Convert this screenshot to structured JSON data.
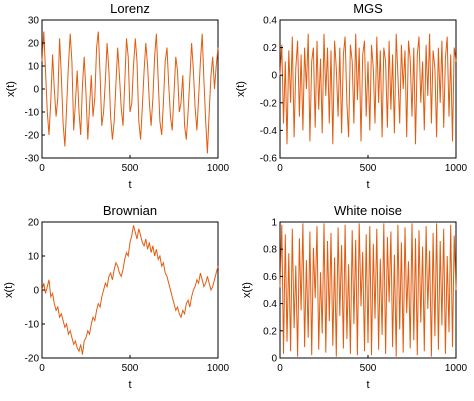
{
  "color": "#e25c10",
  "chart_data": [
    {
      "type": "line",
      "title": "Lorenz",
      "xlabel": "t",
      "ylabel": "x(t)",
      "xlim": [
        0,
        1000
      ],
      "ylim": [
        -30,
        30
      ],
      "xticks": [
        0,
        500,
        1000
      ],
      "yticks": [
        -30,
        -20,
        -10,
        0,
        10,
        20,
        30
      ],
      "ytick_labels": [
        "-30",
        "-20",
        "-10",
        "0",
        "10",
        "20",
        "30"
      ],
      "grid": false,
      "x": [
        0,
        10,
        20,
        30,
        40,
        50,
        60,
        70,
        80,
        90,
        100,
        110,
        120,
        130,
        140,
        150,
        160,
        170,
        180,
        190,
        200,
        210,
        220,
        230,
        240,
        250,
        260,
        270,
        280,
        290,
        300,
        310,
        320,
        330,
        340,
        350,
        360,
        370,
        380,
        390,
        400,
        410,
        420,
        430,
        440,
        450,
        460,
        470,
        480,
        490,
        500,
        510,
        520,
        530,
        540,
        550,
        560,
        570,
        580,
        590,
        600,
        610,
        620,
        630,
        640,
        650,
        660,
        670,
        680,
        690,
        700,
        710,
        720,
        730,
        740,
        750,
        760,
        770,
        780,
        790,
        800,
        810,
        820,
        830,
        840,
        850,
        860,
        870,
        880,
        890,
        900,
        910,
        920,
        930,
        940,
        950,
        960,
        970,
        980,
        990,
        1000
      ],
      "y": [
        12,
        25,
        8,
        -10,
        -20,
        -5,
        15,
        0,
        -12,
        -4,
        22,
        5,
        -15,
        -25,
        -8,
        10,
        24,
        12,
        -18,
        -6,
        8,
        -10,
        -20,
        2,
        14,
        -2,
        -22,
        -8,
        6,
        -12,
        -4,
        18,
        25,
        6,
        -16,
        -10,
        4,
        20,
        8,
        -12,
        -22,
        -14,
        2,
        18,
        6,
        -8,
        -16,
        2,
        22,
        14,
        -10,
        -6,
        10,
        22,
        12,
        -14,
        -22,
        -8,
        8,
        20,
        10,
        -6,
        -16,
        -4,
        14,
        24,
        4,
        -14,
        -20,
        -6,
        12,
        18,
        2,
        -12,
        -18,
        -2,
        14,
        8,
        -10,
        -6,
        6,
        -16,
        -22,
        -10,
        4,
        20,
        8,
        -8,
        -18,
        -4,
        12,
        24,
        4,
        -14,
        -28,
        -10,
        6,
        14,
        0,
        10,
        18
      ]
    },
    {
      "type": "line",
      "title": "MGS",
      "xlabel": "t",
      "ylabel": "x(t)",
      "xlim": [
        0,
        1000
      ],
      "ylim": [
        -0.6,
        0.4
      ],
      "xticks": [
        0,
        500,
        1000
      ],
      "yticks": [
        -0.6,
        -0.4,
        -0.2,
        0,
        0.2,
        0.4
      ],
      "ytick_labels": [
        "-0.6",
        "-0.4",
        "-0.2",
        "0",
        "0.2",
        "0.4"
      ],
      "grid": false,
      "x": [
        0,
        10,
        20,
        30,
        40,
        50,
        60,
        70,
        80,
        90,
        100,
        110,
        120,
        130,
        140,
        150,
        160,
        170,
        180,
        190,
        200,
        210,
        220,
        230,
        240,
        250,
        260,
        270,
        280,
        290,
        300,
        310,
        320,
        330,
        340,
        350,
        360,
        370,
        380,
        390,
        400,
        410,
        420,
        430,
        440,
        450,
        460,
        470,
        480,
        490,
        500,
        510,
        520,
        530,
        540,
        550,
        560,
        570,
        580,
        590,
        600,
        610,
        620,
        630,
        640,
        650,
        660,
        670,
        680,
        690,
        700,
        710,
        720,
        730,
        740,
        750,
        760,
        770,
        780,
        790,
        800,
        810,
        820,
        830,
        840,
        850,
        860,
        870,
        880,
        890,
        900,
        910,
        920,
        930,
        940,
        950,
        960,
        970,
        980,
        990,
        1000
      ],
      "y": [
        0.0,
        0.22,
        -0.35,
        0.1,
        -0.5,
        0.18,
        -0.2,
        0.28,
        -0.45,
        0.05,
        0.25,
        -0.3,
        0.15,
        -0.4,
        0.2,
        -0.1,
        0.3,
        -0.48,
        0.1,
        0.2,
        -0.38,
        0.25,
        -0.25,
        0.12,
        -0.42,
        0.3,
        -0.15,
        0.2,
        -0.35,
        0.18,
        -0.5,
        0.25,
        0.05,
        -0.3,
        0.2,
        -0.42,
        0.15,
        0.28,
        -0.2,
        -0.45,
        0.22,
        0.1,
        -0.35,
        0.3,
        -0.18,
        0.2,
        -0.48,
        0.15,
        0.25,
        -0.3,
        0.1,
        -0.4,
        0.22,
        0.05,
        -0.35,
        0.28,
        -0.2,
        0.18,
        -0.45,
        0.2,
        0.1,
        -0.38,
        0.25,
        -0.25,
        0.15,
        -0.42,
        0.3,
        0.0,
        -0.35,
        0.22,
        -0.1,
        0.18,
        -0.45,
        0.25,
        0.12,
        -0.3,
        0.2,
        -0.5,
        0.15,
        0.28,
        -0.2,
        0.1,
        -0.4,
        0.22,
        -0.15,
        0.3,
        -0.35,
        0.18,
        0.05,
        -0.45,
        0.2,
        -0.2,
        0.25,
        -0.38,
        0.12,
        0.28,
        -0.3,
        0.15,
        -0.48,
        0.2,
        0.1
      ]
    },
    {
      "type": "line",
      "title": "Brownian",
      "xlabel": "t",
      "ylabel": "x(t)",
      "xlim": [
        0,
        1000
      ],
      "ylim": [
        -20,
        20
      ],
      "xticks": [
        0,
        500,
        1000
      ],
      "yticks": [
        -20,
        -10,
        0,
        10,
        20
      ],
      "ytick_labels": [
        "-20",
        "-10",
        "0",
        "10",
        "20"
      ],
      "grid": false,
      "x": [
        0,
        10,
        20,
        30,
        40,
        50,
        60,
        70,
        80,
        90,
        100,
        110,
        120,
        130,
        140,
        150,
        160,
        170,
        180,
        190,
        200,
        210,
        220,
        230,
        240,
        250,
        260,
        270,
        280,
        290,
        300,
        310,
        320,
        330,
        340,
        350,
        360,
        370,
        380,
        390,
        400,
        410,
        420,
        430,
        440,
        450,
        460,
        470,
        480,
        490,
        500,
        510,
        520,
        530,
        540,
        550,
        560,
        570,
        580,
        590,
        600,
        610,
        620,
        630,
        640,
        650,
        660,
        670,
        680,
        690,
        700,
        710,
        720,
        730,
        740,
        750,
        760,
        770,
        780,
        790,
        800,
        810,
        820,
        830,
        840,
        850,
        860,
        870,
        880,
        890,
        900,
        910,
        920,
        930,
        940,
        950,
        960,
        970,
        980,
        990,
        1000
      ],
      "y": [
        0,
        2,
        -1,
        1,
        3,
        -2,
        -1,
        -4,
        -6,
        -5,
        -8,
        -7,
        -9,
        -11,
        -10,
        -13,
        -12,
        -14,
        -16,
        -15,
        -17,
        -18,
        -16,
        -19,
        -15,
        -14,
        -12,
        -13,
        -10,
        -8,
        -9,
        -6,
        -4,
        -5,
        -2,
        0,
        2,
        1,
        4,
        5,
        3,
        6,
        8,
        7,
        5,
        4,
        6,
        9,
        11,
        10,
        14,
        16,
        19,
        17,
        15,
        18,
        16,
        14,
        13,
        15,
        12,
        14,
        11,
        13,
        10,
        12,
        9,
        10,
        7,
        8,
        5,
        4,
        2,
        0,
        -2,
        -4,
        -6,
        -5,
        -7,
        -8,
        -6,
        -7,
        -4,
        -3,
        -5,
        -2,
        0,
        1,
        3,
        2,
        5,
        3,
        1,
        2,
        4,
        2,
        0,
        1,
        3,
        5,
        7
      ]
    },
    {
      "type": "line",
      "title": "White noise",
      "xlabel": "t",
      "ylabel": "x(t)",
      "xlim": [
        0,
        1000
      ],
      "ylim": [
        0,
        1
      ],
      "xticks": [
        0,
        500,
        1000
      ],
      "yticks": [
        0,
        0.2,
        0.4,
        0.6,
        0.8,
        1
      ],
      "ytick_labels": [
        "0",
        "0.2",
        "0.4",
        "0.6",
        "0.8",
        "1"
      ],
      "grid": false,
      "x": [
        0,
        10,
        20,
        30,
        40,
        50,
        60,
        70,
        80,
        90,
        100,
        110,
        120,
        130,
        140,
        150,
        160,
        170,
        180,
        190,
        200,
        210,
        220,
        230,
        240,
        250,
        260,
        270,
        280,
        290,
        300,
        310,
        320,
        330,
        340,
        350,
        360,
        370,
        380,
        390,
        400,
        410,
        420,
        430,
        440,
        450,
        460,
        470,
        480,
        490,
        500,
        510,
        520,
        530,
        540,
        550,
        560,
        570,
        580,
        590,
        600,
        610,
        620,
        630,
        640,
        650,
        660,
        670,
        680,
        690,
        700,
        710,
        720,
        730,
        740,
        750,
        760,
        770,
        780,
        790,
        800,
        810,
        820,
        830,
        840,
        850,
        860,
        870,
        880,
        890,
        900,
        910,
        920,
        930,
        940,
        950,
        960,
        970,
        980,
        990,
        1000
      ],
      "y": [
        0.52,
        0.98,
        0.03,
        0.91,
        0.12,
        0.77,
        0.05,
        0.95,
        0.22,
        0.68,
        0.01,
        0.88,
        0.35,
        0.99,
        0.08,
        0.72,
        0.15,
        0.93,
        0.02,
        0.81,
        0.44,
        0.97,
        0.06,
        0.63,
        0.18,
        0.99,
        0.04,
        0.86,
        0.27,
        0.92,
        0.09,
        0.74,
        0.01,
        0.96,
        0.31,
        0.83,
        0.07,
        0.98,
        0.14,
        0.69,
        0.03,
        0.94,
        0.25,
        0.87,
        0.02,
        0.99,
        0.38,
        0.78,
        0.05,
        0.91,
        0.11,
        0.97,
        0.02,
        0.84,
        0.29,
        0.95,
        0.06,
        0.73,
        0.17,
        0.99,
        0.03,
        0.89,
        0.41,
        0.93,
        0.08,
        0.76,
        0.01,
        0.98,
        0.21,
        0.85,
        0.04,
        0.96,
        0.33,
        0.71,
        0.07,
        0.99,
        0.13,
        0.88,
        0.02,
        0.94,
        0.26,
        0.82,
        0.05,
        0.97,
        0.36,
        0.79,
        0.01,
        0.92,
        0.16,
        0.99,
        0.06,
        0.86,
        0.24,
        0.95,
        0.03,
        0.75,
        0.19,
        0.98,
        0.08,
        0.9,
        0.5
      ]
    }
  ]
}
